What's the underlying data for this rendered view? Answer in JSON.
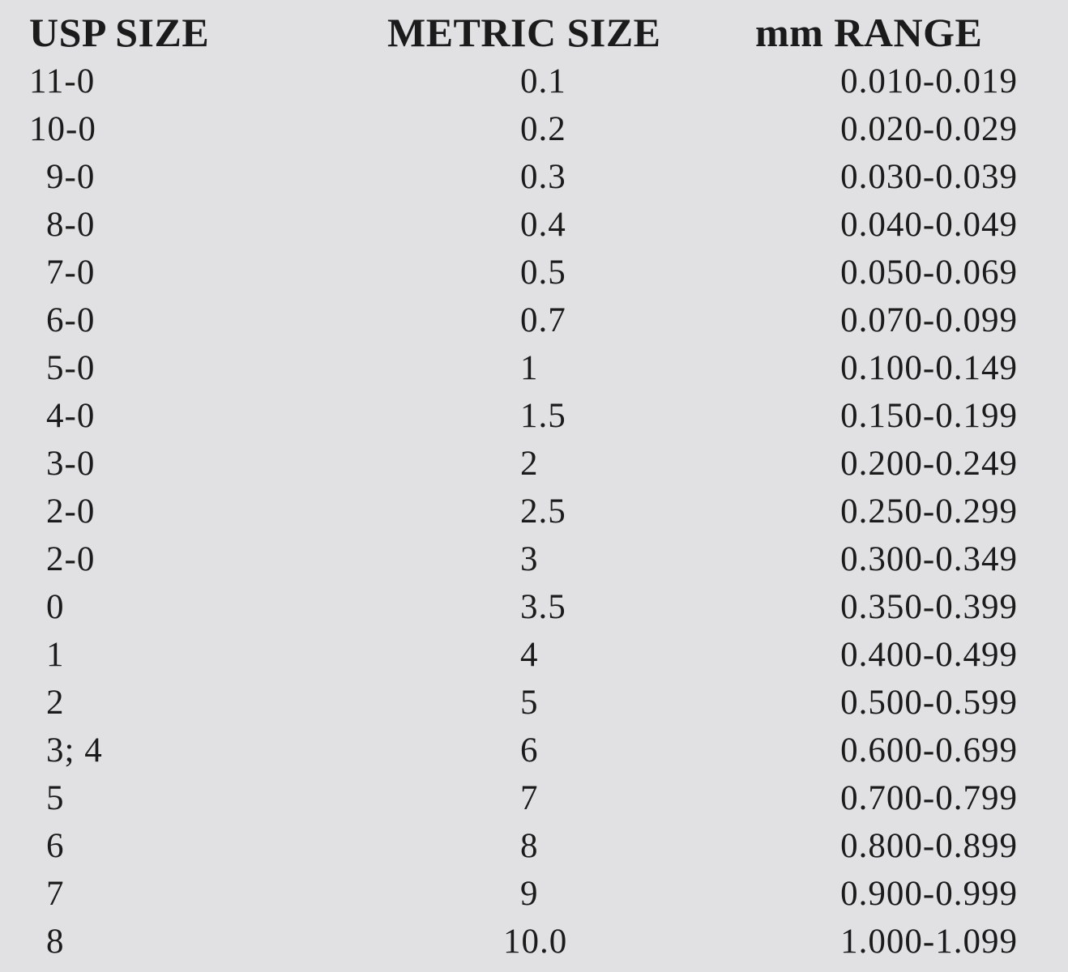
{
  "table": {
    "headers": {
      "usp": "USP SIZE",
      "metric": "METRIC SIZE",
      "range": "mm RANGE"
    },
    "rows": [
      {
        "usp": "11-0",
        "metric": "0.1",
        "range": "0.010-0.019"
      },
      {
        "usp": "10-0",
        "metric": "0.2",
        "range": "0.020-0.029"
      },
      {
        "usp": "9-0",
        "metric": "0.3",
        "range": "0.030-0.039"
      },
      {
        "usp": "8-0",
        "metric": "0.4",
        "range": "0.040-0.049"
      },
      {
        "usp": "7-0",
        "metric": "0.5",
        "range": "0.050-0.069"
      },
      {
        "usp": "6-0",
        "metric": "0.7",
        "range": "0.070-0.099"
      },
      {
        "usp": "5-0",
        "metric": "1",
        "range": "0.100-0.149"
      },
      {
        "usp": "4-0",
        "metric": "1.5",
        "range": "0.150-0.199"
      },
      {
        "usp": "3-0",
        "metric": "2",
        "range": "0.200-0.249"
      },
      {
        "usp": "2-0",
        "metric": "2.5",
        "range": "0.250-0.299"
      },
      {
        "usp": "2-0",
        "metric": "3",
        "range": "0.300-0.349"
      },
      {
        "usp": "0",
        "metric": "3.5",
        "range": "0.350-0.399"
      },
      {
        "usp": "1",
        "metric": "4",
        "range": "0.400-0.499"
      },
      {
        "usp": "2",
        "metric": "5",
        "range": "0.500-0.599"
      },
      {
        "usp": "3; 4",
        "metric": "6",
        "range": "0.600-0.699"
      },
      {
        "usp": "5",
        "metric": "7",
        "range": "0.700-0.799"
      },
      {
        "usp": "6",
        "metric": "8",
        "range": "0.800-0.899"
      },
      {
        "usp": "7",
        "metric": "9",
        "range": "0.900-0.999"
      },
      {
        "usp": "8",
        "metric": "10.0",
        "range": "1.000-1.099"
      }
    ]
  }
}
